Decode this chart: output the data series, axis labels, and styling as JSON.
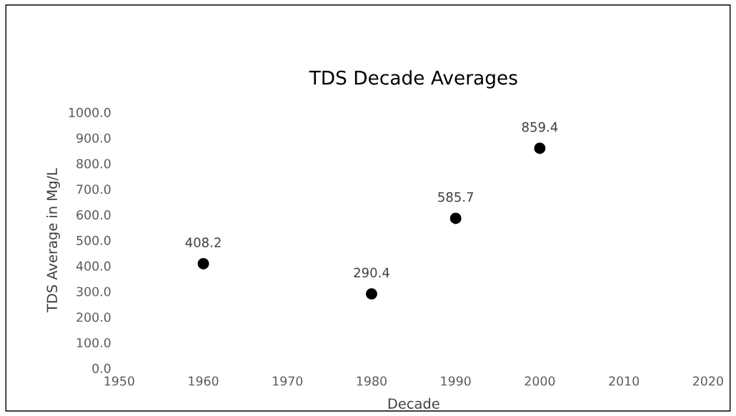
{
  "chart_data": {
    "type": "scatter",
    "title": "TDS Decade Averages",
    "xlabel": "Decade",
    "ylabel": "TDS Average in Mg/L",
    "x": [
      1960,
      1980,
      1990,
      2000
    ],
    "series": [
      {
        "color": "#000000",
        "values": [
          408.2,
          290.4,
          585.7,
          859.4
        ]
      }
    ],
    "marker": "circle",
    "data_labels": true,
    "grid": false,
    "legend": false,
    "xlim": [
      1950,
      2020
    ],
    "xticks": [
      1950,
      1960,
      1970,
      1980,
      1990,
      2000,
      2010,
      2020
    ],
    "ylim": [
      0,
      1000
    ],
    "yticks": [
      {
        "value": 0,
        "label": "0.0"
      },
      {
        "value": 100,
        "label": "100.0"
      },
      {
        "value": 200,
        "label": "200.0"
      },
      {
        "value": 300,
        "label": "300.0"
      },
      {
        "value": 400,
        "label": "400.0"
      },
      {
        "value": 500,
        "label": "500.0"
      },
      {
        "value": 600,
        "label": "600.0"
      },
      {
        "value": 700,
        "label": "700.0"
      },
      {
        "value": 800,
        "label": "800.0"
      },
      {
        "value": 900,
        "label": "900.0"
      },
      {
        "value": 1000,
        "label": "1000.0"
      }
    ]
  }
}
